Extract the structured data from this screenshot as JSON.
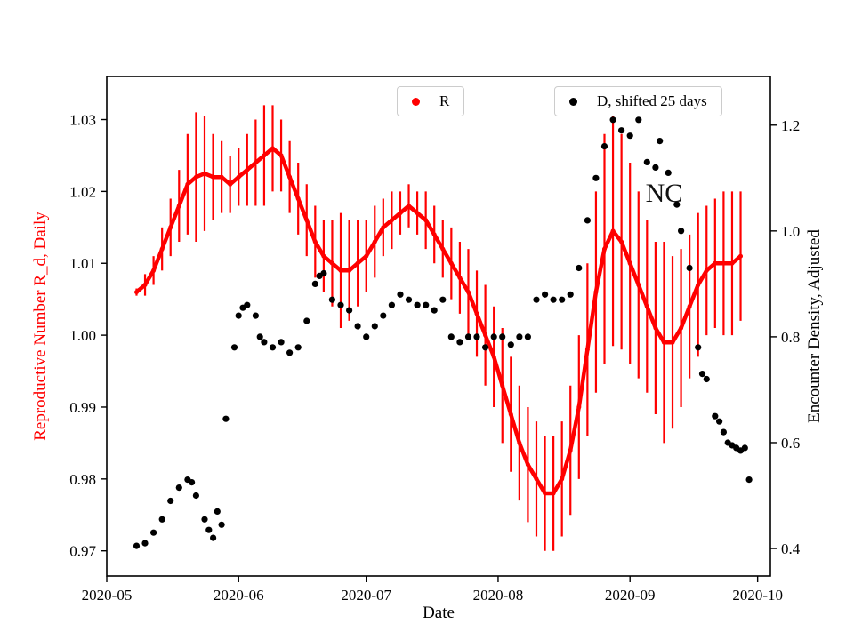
{
  "figure": {
    "background": "#ffffff"
  },
  "chart_data": {
    "type": "scatter",
    "title": "",
    "xlabel": "Date",
    "ylabel_left": "Reproductive Number R_d, Daily",
    "ylabel_right": "Encounter Density, Adjusted",
    "colors": {
      "R": "#ff0000",
      "D": "#000000",
      "legend_border": "#cccccc"
    },
    "xlim": [
      "2020-05-01",
      "2020-10-04"
    ],
    "ylim_left": [
      0.9665,
      1.036
    ],
    "ylim_right": [
      0.348,
      1.292
    ],
    "grid": false,
    "legend_position": "top",
    "xticks": [
      {
        "date": "2020-05-01",
        "label": "2020-05"
      },
      {
        "date": "2020-06-01",
        "label": "2020-06"
      },
      {
        "date": "2020-07-01",
        "label": "2020-07"
      },
      {
        "date": "2020-08-01",
        "label": "2020-08"
      },
      {
        "date": "2020-09-01",
        "label": "2020-09"
      },
      {
        "date": "2020-10-01",
        "label": "2020-10"
      }
    ],
    "yticks_left": [
      {
        "v": 0.97,
        "label": "0.97"
      },
      {
        "v": 0.98,
        "label": "0.98"
      },
      {
        "v": 0.99,
        "label": "0.99"
      },
      {
        "v": 1.0,
        "label": "1.00"
      },
      {
        "v": 1.01,
        "label": "1.01"
      },
      {
        "v": 1.02,
        "label": "1.02"
      },
      {
        "v": 1.03,
        "label": "1.03"
      }
    ],
    "yticks_right": [
      {
        "v": 0.4,
        "label": "0.4"
      },
      {
        "v": 0.6,
        "label": "0.6"
      },
      {
        "v": 0.8,
        "label": "0.8"
      },
      {
        "v": 1.0,
        "label": "1.0"
      },
      {
        "v": 1.2,
        "label": "1.2"
      }
    ],
    "annotation": {
      "text": "NC",
      "date": "2020-09-09",
      "value_right": 1.07
    },
    "legend": [
      {
        "name": "R",
        "color": "#ff0000"
      },
      {
        "name": "D, shifted 25 days",
        "color": "#000000"
      }
    ],
    "series": [
      {
        "name": "R",
        "axis": "left",
        "marker": "dot",
        "has_error_bars": true,
        "points": [
          [
            "2020-05-08",
            1.006,
            0.0005
          ],
          [
            "2020-05-10",
            1.007,
            0.0015
          ],
          [
            "2020-05-12",
            1.009,
            0.002
          ],
          [
            "2020-05-14",
            1.012,
            0.003
          ],
          [
            "2020-05-16",
            1.015,
            0.004
          ],
          [
            "2020-05-18",
            1.018,
            0.005
          ],
          [
            "2020-05-20",
            1.021,
            0.007
          ],
          [
            "2020-05-22",
            1.022,
            0.009
          ],
          [
            "2020-05-24",
            1.0225,
            0.008
          ],
          [
            "2020-05-26",
            1.022,
            0.006
          ],
          [
            "2020-05-28",
            1.022,
            0.005
          ],
          [
            "2020-05-30",
            1.021,
            0.004
          ],
          [
            "2020-06-01",
            1.022,
            0.004
          ],
          [
            "2020-06-03",
            1.023,
            0.005
          ],
          [
            "2020-06-05",
            1.024,
            0.006
          ],
          [
            "2020-06-07",
            1.025,
            0.007
          ],
          [
            "2020-06-09",
            1.026,
            0.006
          ],
          [
            "2020-06-11",
            1.025,
            0.005
          ],
          [
            "2020-06-13",
            1.022,
            0.005
          ],
          [
            "2020-06-15",
            1.019,
            0.005
          ],
          [
            "2020-06-17",
            1.016,
            0.005
          ],
          [
            "2020-06-19",
            1.013,
            0.005
          ],
          [
            "2020-06-21",
            1.011,
            0.005
          ],
          [
            "2020-06-23",
            1.01,
            0.006
          ],
          [
            "2020-06-25",
            1.009,
            0.008
          ],
          [
            "2020-06-27",
            1.009,
            0.007
          ],
          [
            "2020-06-29",
            1.01,
            0.006
          ],
          [
            "2020-07-01",
            1.011,
            0.005
          ],
          [
            "2020-07-03",
            1.013,
            0.005
          ],
          [
            "2020-07-05",
            1.015,
            0.004
          ],
          [
            "2020-07-07",
            1.016,
            0.004
          ],
          [
            "2020-07-09",
            1.017,
            0.003
          ],
          [
            "2020-07-11",
            1.018,
            0.003
          ],
          [
            "2020-07-13",
            1.017,
            0.003
          ],
          [
            "2020-07-15",
            1.016,
            0.004
          ],
          [
            "2020-07-17",
            1.014,
            0.004
          ],
          [
            "2020-07-19",
            1.012,
            0.004
          ],
          [
            "2020-07-21",
            1.01,
            0.005
          ],
          [
            "2020-07-23",
            1.008,
            0.005
          ],
          [
            "2020-07-25",
            1.006,
            0.006
          ],
          [
            "2020-07-27",
            1.003,
            0.006
          ],
          [
            "2020-07-29",
            1.0,
            0.007
          ],
          [
            "2020-07-31",
            0.997,
            0.007
          ],
          [
            "2020-08-02",
            0.993,
            0.008
          ],
          [
            "2020-08-04",
            0.989,
            0.008
          ],
          [
            "2020-08-06",
            0.985,
            0.008
          ],
          [
            "2020-08-08",
            0.982,
            0.008
          ],
          [
            "2020-08-10",
            0.98,
            0.008
          ],
          [
            "2020-08-12",
            0.978,
            0.008
          ],
          [
            "2020-08-14",
            0.978,
            0.008
          ],
          [
            "2020-08-16",
            0.98,
            0.008
          ],
          [
            "2020-08-18",
            0.984,
            0.009
          ],
          [
            "2020-08-20",
            0.99,
            0.01
          ],
          [
            "2020-08-22",
            0.998,
            0.012
          ],
          [
            "2020-08-24",
            1.006,
            0.014
          ],
          [
            "2020-08-26",
            1.012,
            0.016
          ],
          [
            "2020-08-28",
            1.0145,
            0.016
          ],
          [
            "2020-08-30",
            1.013,
            0.015
          ],
          [
            "2020-09-01",
            1.01,
            0.014
          ],
          [
            "2020-09-03",
            1.007,
            0.013
          ],
          [
            "2020-09-05",
            1.004,
            0.012
          ],
          [
            "2020-09-07",
            1.001,
            0.012
          ],
          [
            "2020-09-09",
            0.999,
            0.014
          ],
          [
            "2020-09-11",
            0.999,
            0.012
          ],
          [
            "2020-09-13",
            1.001,
            0.011
          ],
          [
            "2020-09-15",
            1.004,
            0.01
          ],
          [
            "2020-09-17",
            1.007,
            0.01
          ],
          [
            "2020-09-19",
            1.009,
            0.009
          ],
          [
            "2020-09-21",
            1.01,
            0.009
          ],
          [
            "2020-09-23",
            1.01,
            0.01
          ],
          [
            "2020-09-25",
            1.01,
            0.01
          ],
          [
            "2020-09-27",
            1.011,
            0.009
          ]
        ]
      },
      {
        "name": "D, shifted 25 days",
        "axis": "right",
        "marker": "dot",
        "has_error_bars": false,
        "points": [
          [
            "2020-05-08",
            0.405
          ],
          [
            "2020-05-10",
            0.41
          ],
          [
            "2020-05-12",
            0.43
          ],
          [
            "2020-05-14",
            0.455
          ],
          [
            "2020-05-16",
            0.49
          ],
          [
            "2020-05-18",
            0.515
          ],
          [
            "2020-05-20",
            0.53
          ],
          [
            "2020-05-21",
            0.525
          ],
          [
            "2020-05-22",
            0.5
          ],
          [
            "2020-05-24",
            0.455
          ],
          [
            "2020-05-25",
            0.435
          ],
          [
            "2020-05-26",
            0.42
          ],
          [
            "2020-05-27",
            0.47
          ],
          [
            "2020-05-28",
            0.445
          ],
          [
            "2020-05-29",
            0.645
          ],
          [
            "2020-05-31",
            0.78
          ],
          [
            "2020-06-01",
            0.84
          ],
          [
            "2020-06-02",
            0.855
          ],
          [
            "2020-06-03",
            0.86
          ],
          [
            "2020-06-05",
            0.84
          ],
          [
            "2020-06-06",
            0.8
          ],
          [
            "2020-06-07",
            0.79
          ],
          [
            "2020-06-09",
            0.78
          ],
          [
            "2020-06-11",
            0.79
          ],
          [
            "2020-06-13",
            0.77
          ],
          [
            "2020-06-15",
            0.78
          ],
          [
            "2020-06-17",
            0.83
          ],
          [
            "2020-06-19",
            0.9
          ],
          [
            "2020-06-20",
            0.915
          ],
          [
            "2020-06-21",
            0.92
          ],
          [
            "2020-06-23",
            0.87
          ],
          [
            "2020-06-25",
            0.86
          ],
          [
            "2020-06-27",
            0.85
          ],
          [
            "2020-06-29",
            0.82
          ],
          [
            "2020-07-01",
            0.8
          ],
          [
            "2020-07-03",
            0.82
          ],
          [
            "2020-07-05",
            0.84
          ],
          [
            "2020-07-07",
            0.86
          ],
          [
            "2020-07-09",
            0.88
          ],
          [
            "2020-07-11",
            0.87
          ],
          [
            "2020-07-13",
            0.86
          ],
          [
            "2020-07-15",
            0.86
          ],
          [
            "2020-07-17",
            0.85
          ],
          [
            "2020-07-19",
            0.87
          ],
          [
            "2020-07-21",
            0.8
          ],
          [
            "2020-07-23",
            0.79
          ],
          [
            "2020-07-25",
            0.8
          ],
          [
            "2020-07-27",
            0.8
          ],
          [
            "2020-07-29",
            0.78
          ],
          [
            "2020-07-31",
            0.8
          ],
          [
            "2020-08-02",
            0.8
          ],
          [
            "2020-08-04",
            0.785
          ],
          [
            "2020-08-06",
            0.8
          ],
          [
            "2020-08-08",
            0.8
          ],
          [
            "2020-08-10",
            0.87
          ],
          [
            "2020-08-12",
            0.88
          ],
          [
            "2020-08-14",
            0.87
          ],
          [
            "2020-08-16",
            0.87
          ],
          [
            "2020-08-18",
            0.88
          ],
          [
            "2020-08-20",
            0.93
          ],
          [
            "2020-08-22",
            1.02
          ],
          [
            "2020-08-24",
            1.1
          ],
          [
            "2020-08-26",
            1.16
          ],
          [
            "2020-08-28",
            1.21
          ],
          [
            "2020-08-30",
            1.19
          ],
          [
            "2020-09-01",
            1.18
          ],
          [
            "2020-09-03",
            1.21
          ],
          [
            "2020-09-05",
            1.13
          ],
          [
            "2020-09-07",
            1.12
          ],
          [
            "2020-09-08",
            1.17
          ],
          [
            "2020-09-10",
            1.11
          ],
          [
            "2020-09-12",
            1.05
          ],
          [
            "2020-09-13",
            1.0
          ],
          [
            "2020-09-15",
            0.93
          ],
          [
            "2020-09-17",
            0.78
          ],
          [
            "2020-09-18",
            0.73
          ],
          [
            "2020-09-19",
            0.72
          ],
          [
            "2020-09-21",
            0.65
          ],
          [
            "2020-09-22",
            0.64
          ],
          [
            "2020-09-23",
            0.62
          ],
          [
            "2020-09-24",
            0.6
          ],
          [
            "2020-09-25",
            0.595
          ],
          [
            "2020-09-26",
            0.59
          ],
          [
            "2020-09-27",
            0.585
          ],
          [
            "2020-09-28",
            0.59
          ],
          [
            "2020-09-29",
            0.53
          ]
        ]
      }
    ]
  }
}
